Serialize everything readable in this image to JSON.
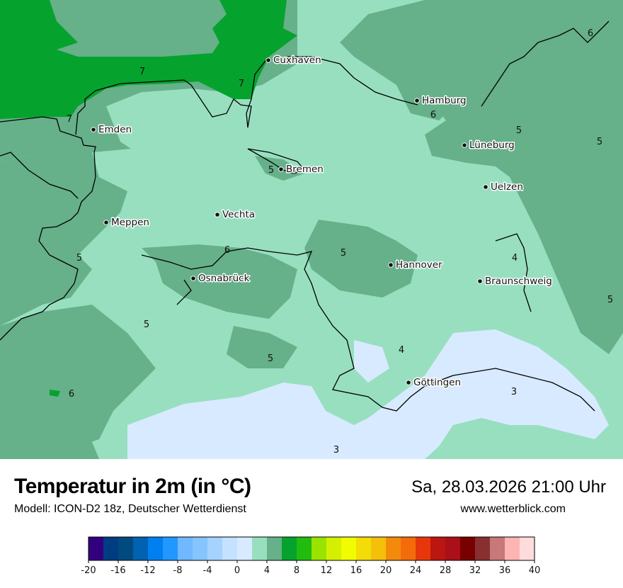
{
  "header": {
    "title": "Temperatur in 2m (in °C)",
    "subtitle": "Modell: ICON-D2 18z, Deutscher Wetterdienst",
    "datetime": "Sa, 28.03.2026 21:00 Uhr",
    "website": "www.wetterblick.com"
  },
  "map": {
    "colors": {
      "band_2_4": "#98dfc0",
      "band_4_6": "#66b08a",
      "band_6_8": "#06a22e",
      "band_0_2": "#d8eaff"
    },
    "cities": [
      {
        "name": "Cuxhaven"
      },
      {
        "name": "Hamburg"
      },
      {
        "name": "Emden"
      },
      {
        "name": "Lüneburg"
      },
      {
        "name": "Bremen"
      },
      {
        "name": "Uelzen"
      },
      {
        "name": "Vechta"
      },
      {
        "name": "Meppen"
      },
      {
        "name": "Hannover"
      },
      {
        "name": "Osnabrück"
      },
      {
        "name": "Braunschweig"
      },
      {
        "name": "Göttingen"
      }
    ],
    "contour_labels": [
      "7",
      "7",
      "7",
      "6",
      "6",
      "6",
      "6",
      "5",
      "5",
      "5",
      "5",
      "5",
      "5",
      "5",
      "5",
      "4",
      "4",
      "3",
      "3"
    ]
  },
  "legend": {
    "min": -20,
    "max": 40,
    "step": 2,
    "tick_labels": [
      "-20",
      "-16",
      "-12",
      "-8",
      "-4",
      "0",
      "4",
      "8",
      "12",
      "16",
      "20",
      "24",
      "28",
      "32",
      "36",
      "40"
    ],
    "colors": [
      "#32007f",
      "#003c82",
      "#004a80",
      "#0062b0",
      "#0080f0",
      "#2098ff",
      "#70b8ff",
      "#86c4ff",
      "#a6d2ff",
      "#c4e2ff",
      "#d8eaff",
      "#98dfc0",
      "#66b08a",
      "#06a22e",
      "#22bc0e",
      "#9ae200",
      "#d2f000",
      "#f2fc00",
      "#f4dc06",
      "#f4c00a",
      "#f48a0c",
      "#f46c0a",
      "#e8360c",
      "#bc1610",
      "#aa1018",
      "#780000",
      "#883030",
      "#c87878",
      "#ffb4b4",
      "#ffdcdc"
    ]
  }
}
